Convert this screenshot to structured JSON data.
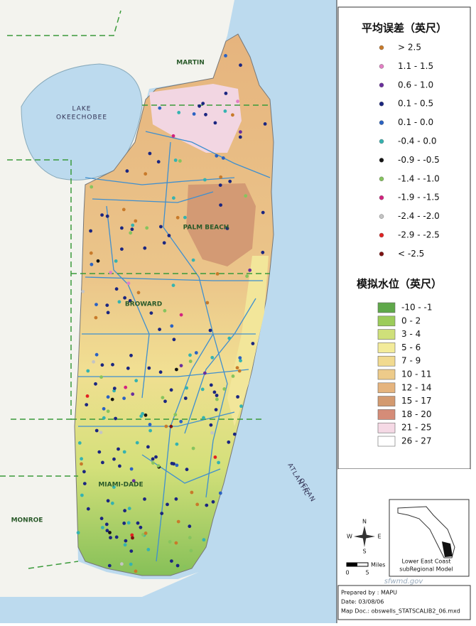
{
  "map": {
    "regions": [
      "MARTIN",
      "PALM BEACH",
      "BROWARD",
      "MIAMI-DADE",
      "MONROE"
    ],
    "water": {
      "lake": [
        "LAKE",
        "OKEECHOBEE"
      ],
      "ocean": [
        "ATLANTIC",
        "OCEAN"
      ]
    },
    "error_legend": {
      "title": "平均误差（英尺）",
      "items": [
        {
          "label": "> 2.5",
          "color": "#c87a2a"
        },
        {
          "label": "1.1 - 1.5",
          "color": "#e37fc4"
        },
        {
          "label": "0.6 - 1.0",
          "color": "#6a2f9e"
        },
        {
          "label": "0.1 - 0.5",
          "color": "#1b2680"
        },
        {
          "label": "0.1 - 0.0",
          "color": "#2b62c2"
        },
        {
          "label": "-0.4 - 0.0",
          "color": "#35b3b0"
        },
        {
          "label": "-0.9 - -0.5",
          "color": "#151515"
        },
        {
          "label": "-1.4 - -1.0",
          "color": "#86c45e"
        },
        {
          "label": "-1.9 - -1.5",
          "color": "#d3237f"
        },
        {
          "label": "-2.4 - -2.0",
          "color": "#c4c4c4"
        },
        {
          "label": "-2.9 - -2.5",
          "color": "#e22222"
        },
        {
          "label": "< -2.5",
          "color": "#7e1212"
        }
      ]
    },
    "stage_legend": {
      "title": "模拟水位（英尺）",
      "items": [
        {
          "label": "-10 - -1",
          "color": "#5fa84a"
        },
        {
          "label": "0 - 2",
          "color": "#9ccc5a"
        },
        {
          "label": "3 - 4",
          "color": "#cfe07a"
        },
        {
          "label": "5 - 6",
          "color": "#f3eb9a"
        },
        {
          "label": "7 - 9",
          "color": "#f1da90"
        },
        {
          "label": "10 - 11",
          "color": "#edcb8a"
        },
        {
          "label": "12 - 14",
          "color": "#e5b47e"
        },
        {
          "label": "15 - 17",
          "color": "#d39a70"
        },
        {
          "label": "18 - 20",
          "color": "#d58c78"
        },
        {
          "label": "21 - 25",
          "color": "#f5d9e5"
        },
        {
          "label": "26 - 27",
          "color": "#ffffff"
        }
      ]
    },
    "compass": [
      "N",
      "S",
      "E",
      "W"
    ],
    "scale": {
      "unit": "Miles",
      "ticks": [
        "0",
        "5"
      ]
    },
    "inset": [
      "Lower East Coast",
      "subRegional Model"
    ],
    "watermark": "sfwmd.gov",
    "credits": [
      "Prepared by : MAPU",
      "Date:  03/08/06",
      "Map Doc.: obswells_STATSCALIB2_06.mxd"
    ]
  }
}
